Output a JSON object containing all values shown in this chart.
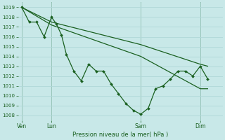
{
  "bg_color": "#c8e8e8",
  "line_color": "#1a6020",
  "grid_color": "#b0d8d8",
  "xlabel": "Pression niveau de la mer( hPa )",
  "ylim": [
    1007.5,
    1019.5
  ],
  "yticks": [
    1008,
    1009,
    1010,
    1011,
    1012,
    1013,
    1014,
    1015,
    1016,
    1017,
    1018,
    1019
  ],
  "xtick_labels": [
    "Ven",
    "Lun",
    "Sam",
    "Dim"
  ],
  "xtick_positions": [
    0,
    24,
    96,
    144
  ],
  "xlim": [
    -3,
    162
  ],
  "vlines": [
    0,
    24,
    96,
    144
  ],
  "series_main": [
    [
      0,
      1019
    ],
    [
      6,
      1017.5
    ],
    [
      12,
      1017.5
    ],
    [
      18,
      1016
    ],
    [
      24,
      1018
    ],
    [
      28,
      1017.3
    ],
    [
      32,
      1016.2
    ],
    [
      36,
      1014.2
    ],
    [
      42,
      1012.5
    ],
    [
      48,
      1011.5
    ],
    [
      54,
      1013.2
    ],
    [
      60,
      1012.5
    ],
    [
      66,
      1012.5
    ],
    [
      72,
      1011.2
    ],
    [
      78,
      1010.2
    ],
    [
      84,
      1009.2
    ],
    [
      90,
      1008.5
    ],
    [
      96,
      1008.1
    ],
    [
      102,
      1008.7
    ],
    [
      108,
      1010.7
    ],
    [
      114,
      1011.0
    ],
    [
      120,
      1011.7
    ],
    [
      126,
      1012.5
    ],
    [
      132,
      1012.5
    ],
    [
      138,
      1012.0
    ],
    [
      144,
      1013.0
    ],
    [
      150,
      1011.7
    ]
  ],
  "series_smooth1": [
    [
      0,
      1019
    ],
    [
      24,
      1017.2
    ],
    [
      96,
      1014.0
    ],
    [
      144,
      1010.7
    ],
    [
      150,
      1010.7
    ]
  ],
  "series_smooth2": [
    [
      0,
      1019
    ],
    [
      24,
      1017.5
    ],
    [
      96,
      1015.2
    ],
    [
      144,
      1013.2
    ],
    [
      150,
      1013.0
    ]
  ]
}
